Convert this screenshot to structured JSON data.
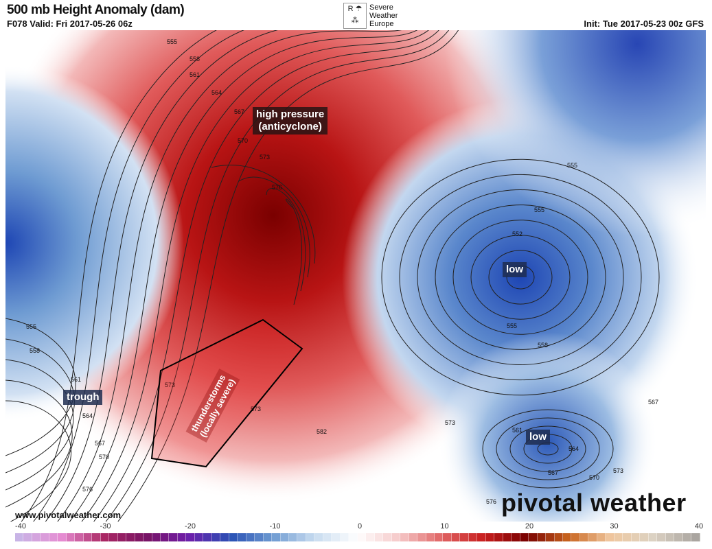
{
  "header": {
    "title": "500 mb Height Anomaly (dam)",
    "valid": "F078 Valid: Fri 2017-05-26 06z",
    "init": "Init: Tue 2017-05-23 00z GFS"
  },
  "logo": {
    "line1": "Severe",
    "line2": "Weather",
    "line3": "Europe",
    "icon": "severe-weather-europe-logo"
  },
  "annotations": {
    "high": "high pressure",
    "high2": "(anticyclone)",
    "low1": "low",
    "low2": "low",
    "trough": "trough",
    "storms": "thunderstorms",
    "storms2": "(locally severe)"
  },
  "contour_labels": [
    "555",
    "558",
    "561",
    "564",
    "567",
    "570",
    "573",
    "576",
    "555",
    "558",
    "561",
    "564",
    "567",
    "570",
    "576",
    "552",
    "555",
    "555",
    "558",
    "555",
    "561",
    "564",
    "567",
    "570",
    "573",
    "573",
    "573",
    "573",
    "576",
    "582",
    "567"
  ],
  "footer": {
    "url": "www.pivotalweather.com",
    "brand": "pivotal weather"
  },
  "colorbar": {
    "ticks": [
      "-40",
      "-30",
      "-20",
      "-10",
      "0",
      "10",
      "20",
      "30",
      "40"
    ],
    "anchors": [
      "#c8b4e6",
      "#e68cd2",
      "#aa2864",
      "#781464",
      "#6e1eaa",
      "#2850b4",
      "#6e9bd2",
      "#c8dcf0",
      "#ffffff",
      "#f5c8c8",
      "#e06464",
      "#c81e1e",
      "#780000",
      "#c8641e",
      "#f0c8a0",
      "#dcd2c3",
      "#aaa5a0"
    ]
  },
  "colors": {
    "high": "#8b0a0a",
    "low": "#1e46a0",
    "neutral": "#ffffff"
  }
}
